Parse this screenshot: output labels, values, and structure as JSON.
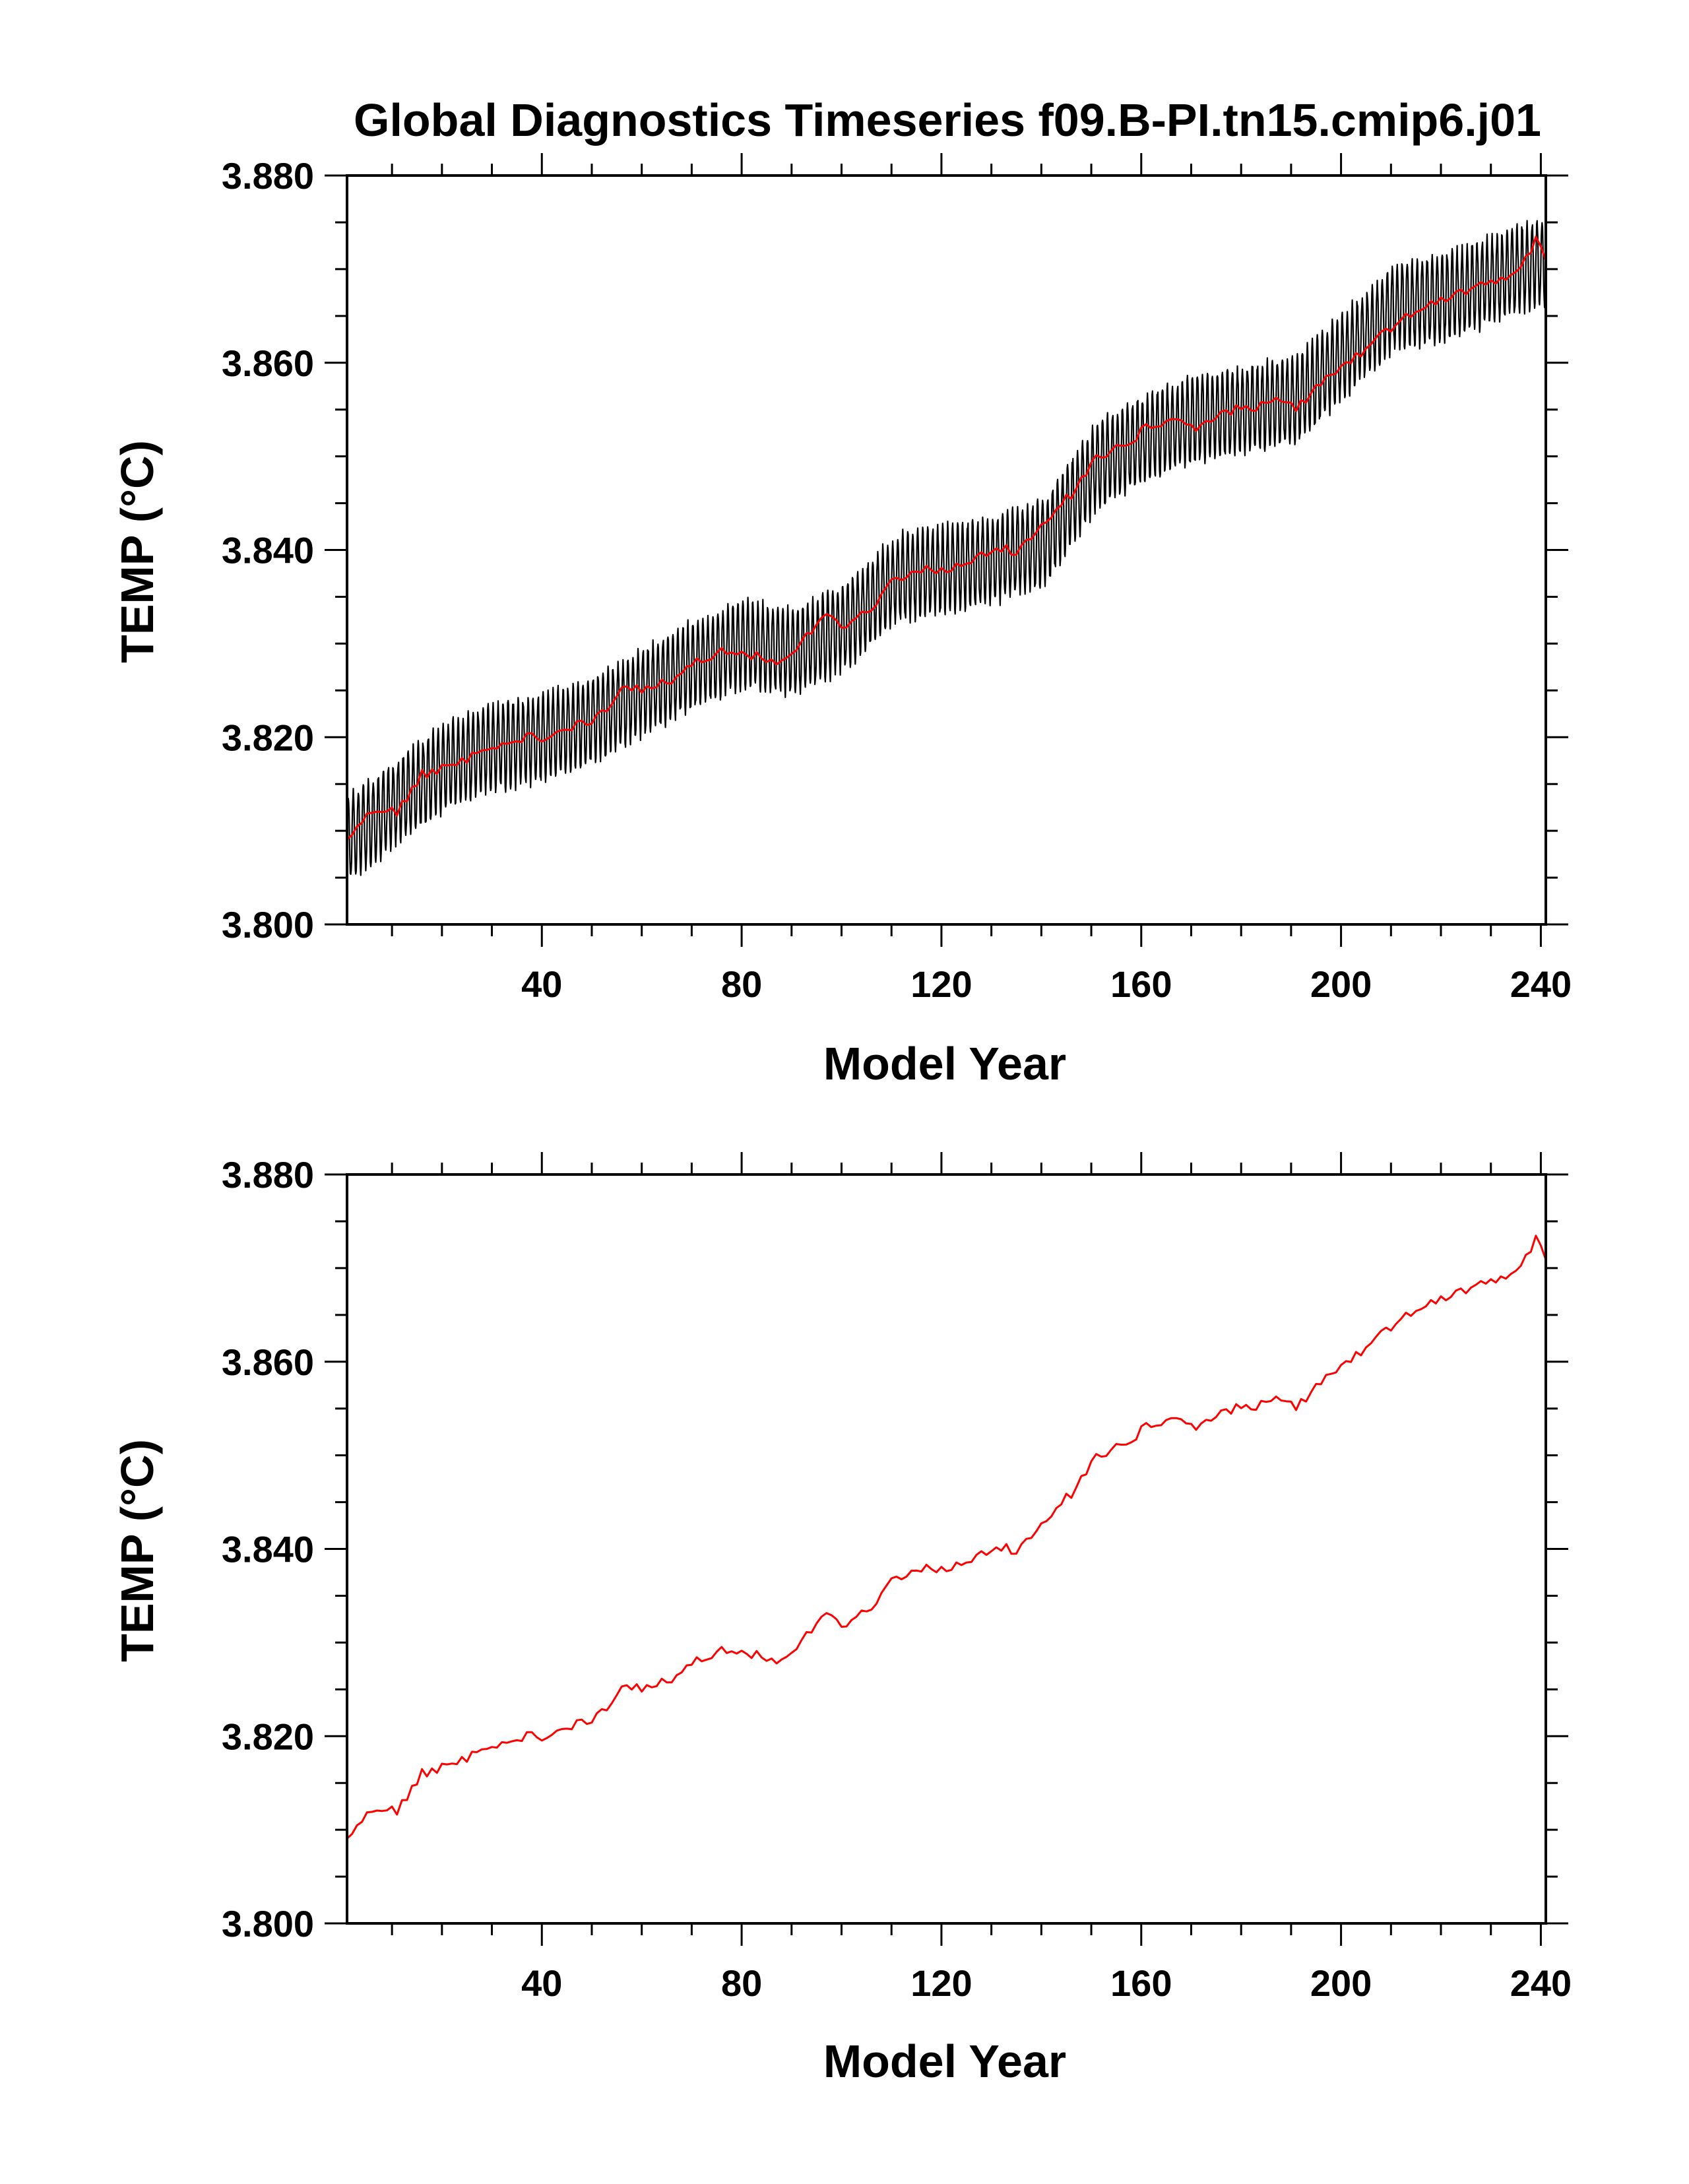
{
  "title": "Global Diagnostics Timeseries f09.B-PI.tn15.cmip6.j01",
  "chart_data": [
    {
      "type": "line",
      "xlabel": "Model Year",
      "ylabel": "TEMP (°C)",
      "xlim": [
        1,
        241
      ],
      "ylim": [
        3.8,
        3.88
      ],
      "xticks": [
        40,
        80,
        120,
        160,
        200,
        240
      ],
      "xtick_labels": [
        "40",
        "80",
        "120",
        "160",
        "200",
        "240"
      ],
      "yticks": [
        3.8,
        3.82,
        3.84,
        3.86,
        3.88
      ],
      "ytick_labels": [
        "3.800",
        "3.820",
        "3.840",
        "3.860",
        "3.880"
      ],
      "series": [
        {
          "color": "#000000",
          "style": "monthly",
          "seasonal_amplitude": 0.0045,
          "x": [
            1,
            11,
            21,
            31,
            41,
            51,
            61,
            71,
            81,
            91,
            101,
            111,
            121,
            131,
            141,
            151,
            161,
            171,
            181,
            191,
            201,
            211,
            221,
            231,
            241
          ],
          "values": [
            3.809,
            3.813,
            3.817,
            3.819,
            3.82,
            3.822,
            3.825,
            3.828,
            3.83,
            3.829,
            3.832,
            3.837,
            3.838,
            3.839,
            3.841,
            3.849,
            3.852,
            3.854,
            3.855,
            3.856,
            3.861,
            3.866,
            3.867,
            3.869,
            3.871
          ]
        },
        {
          "color": "#ff0000",
          "style": "annual",
          "x": [
            1,
            6,
            11,
            16,
            21,
            26,
            31,
            36,
            41,
            46,
            51,
            56,
            61,
            66,
            71,
            76,
            81,
            86,
            91,
            96,
            101,
            106,
            111,
            116,
            121,
            126,
            131,
            136,
            141,
            146,
            151,
            156,
            161,
            166,
            171,
            176,
            181,
            186,
            191,
            196,
            201,
            206,
            211,
            216,
            221,
            226,
            231,
            236,
            239,
            241
          ],
          "values": [
            3.809,
            3.812,
            3.812,
            3.816,
            3.817,
            3.818,
            3.819,
            3.82,
            3.82,
            3.821,
            3.822,
            3.825,
            3.825,
            3.826,
            3.828,
            3.829,
            3.829,
            3.828,
            3.829,
            3.833,
            3.832,
            3.834,
            3.837,
            3.838,
            3.838,
            3.839,
            3.84,
            3.84,
            3.843,
            3.846,
            3.85,
            3.851,
            3.853,
            3.854,
            3.853,
            3.855,
            3.855,
            3.856,
            3.855,
            3.858,
            3.86,
            3.862,
            3.864,
            3.866,
            3.867,
            3.868,
            3.869,
            3.87,
            3.873,
            3.871
          ]
        }
      ]
    },
    {
      "type": "line",
      "xlabel": "Model Year",
      "ylabel": "TEMP (°C)",
      "xlim": [
        1,
        241
      ],
      "ylim": [
        3.8,
        3.88
      ],
      "xticks": [
        40,
        80,
        120,
        160,
        200,
        240
      ],
      "xtick_labels": [
        "40",
        "80",
        "120",
        "160",
        "200",
        "240"
      ],
      "yticks": [
        3.8,
        3.82,
        3.84,
        3.86,
        3.88
      ],
      "ytick_labels": [
        "3.800",
        "3.820",
        "3.840",
        "3.860",
        "3.880"
      ],
      "series": [
        {
          "color": "#ff0000",
          "style": "annual",
          "x": [
            1,
            6,
            11,
            16,
            21,
            26,
            31,
            36,
            41,
            46,
            51,
            56,
            61,
            66,
            71,
            76,
            81,
            86,
            91,
            96,
            101,
            106,
            111,
            116,
            121,
            126,
            131,
            136,
            141,
            146,
            151,
            156,
            161,
            166,
            171,
            176,
            181,
            186,
            191,
            196,
            201,
            206,
            211,
            216,
            221,
            226,
            231,
            236,
            239,
            241
          ],
          "values": [
            3.809,
            3.812,
            3.812,
            3.816,
            3.817,
            3.818,
            3.819,
            3.82,
            3.82,
            3.821,
            3.822,
            3.825,
            3.825,
            3.826,
            3.828,
            3.829,
            3.829,
            3.828,
            3.829,
            3.833,
            3.832,
            3.834,
            3.837,
            3.838,
            3.838,
            3.839,
            3.84,
            3.84,
            3.843,
            3.846,
            3.85,
            3.851,
            3.853,
            3.854,
            3.853,
            3.855,
            3.855,
            3.856,
            3.855,
            3.858,
            3.86,
            3.862,
            3.864,
            3.866,
            3.867,
            3.868,
            3.869,
            3.87,
            3.873,
            3.871
          ]
        }
      ]
    }
  ]
}
